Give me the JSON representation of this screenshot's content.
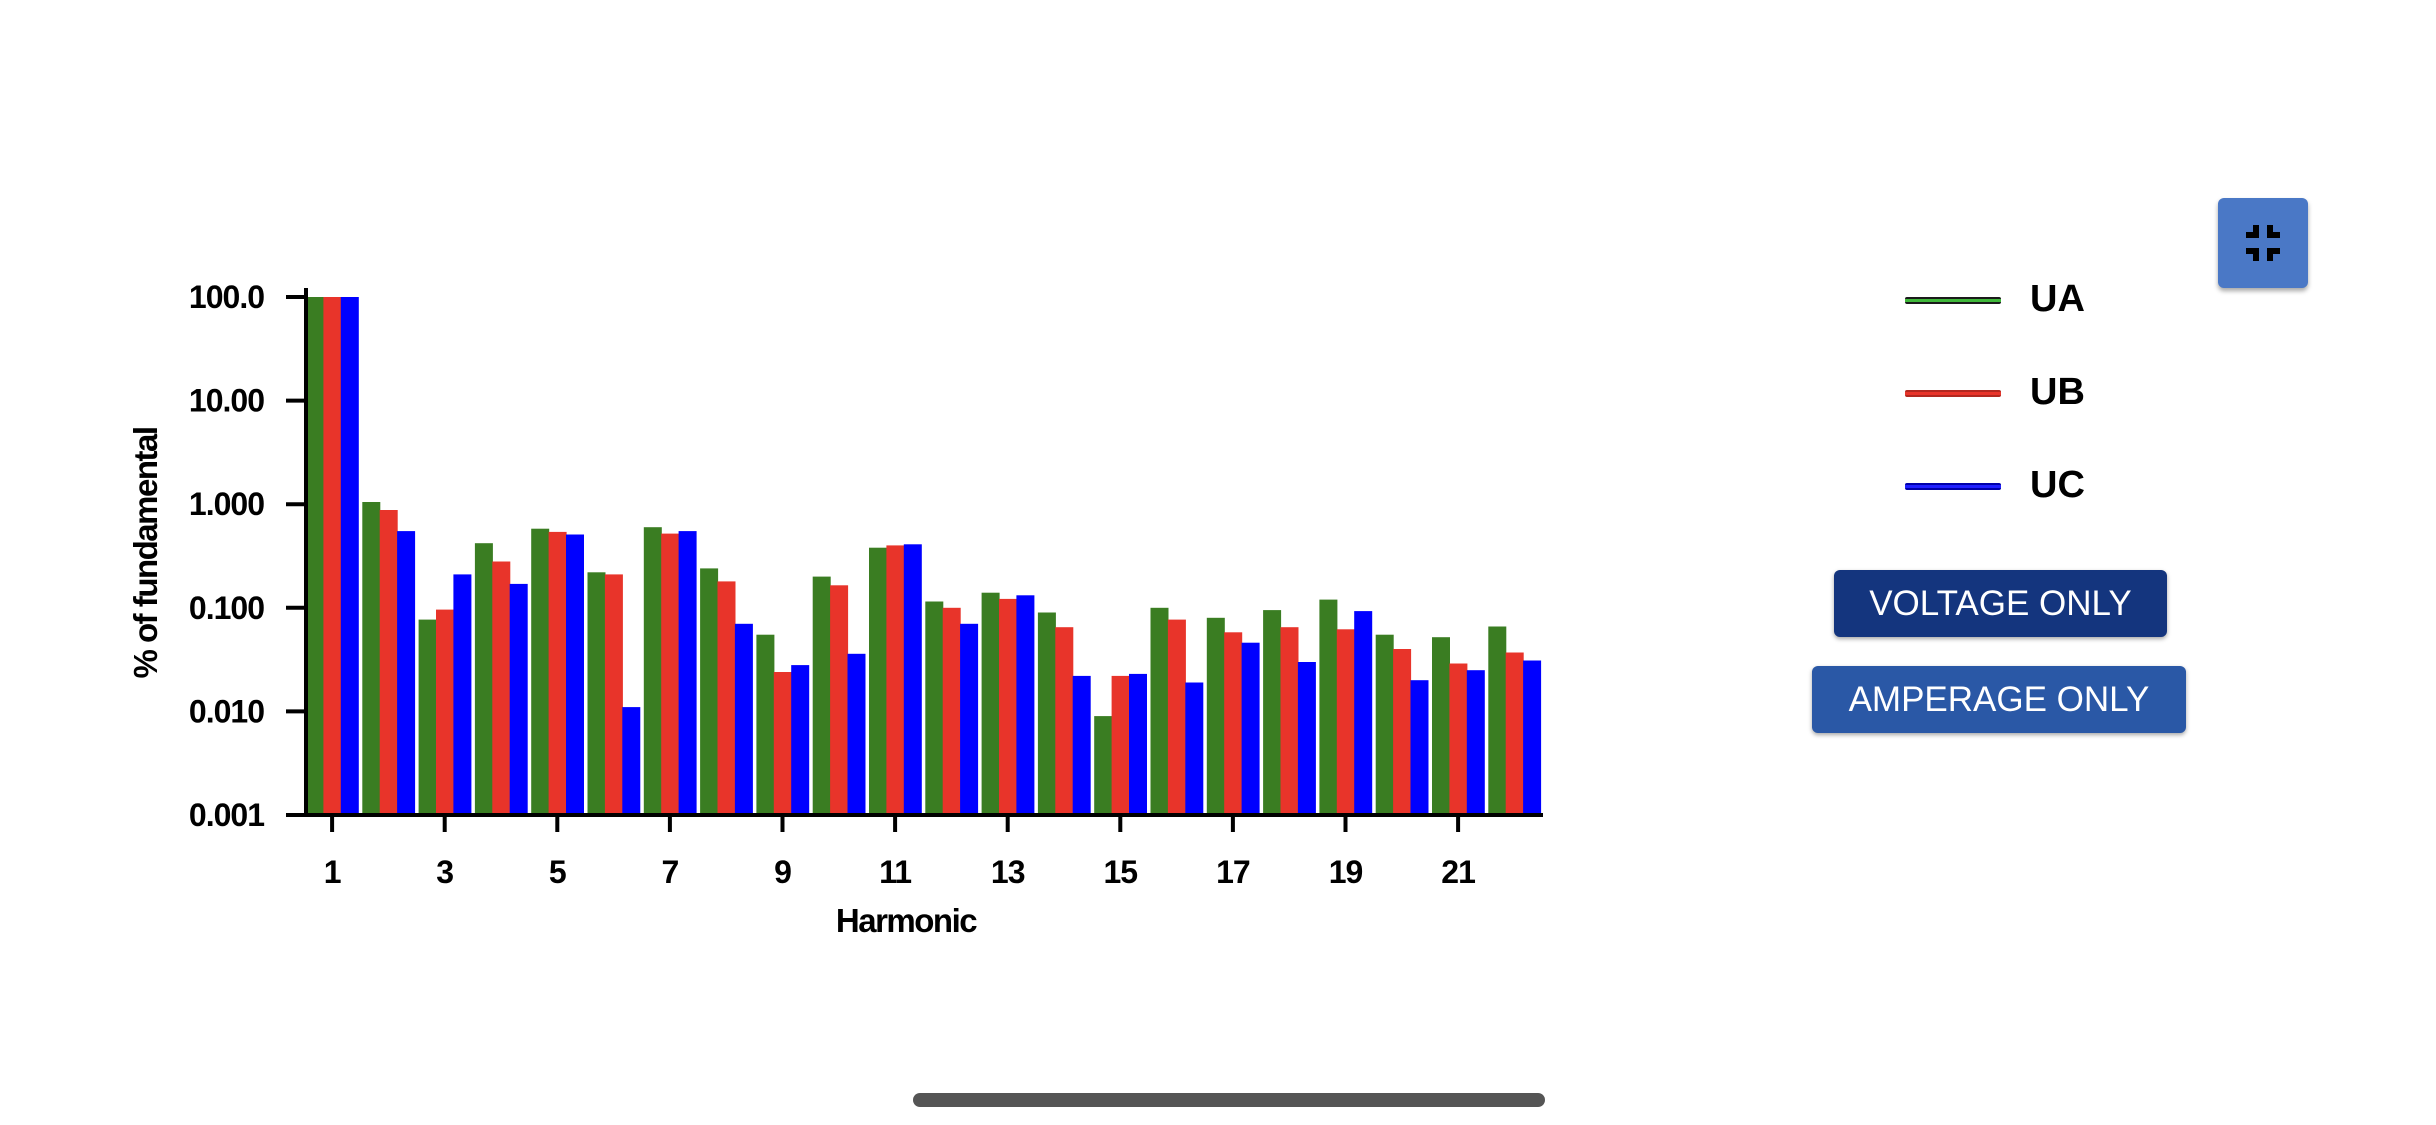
{
  "colors": {
    "ua": "#3a7d22",
    "ub": "#e8342a",
    "uc": "#0000ff",
    "button_dark": "#14357e",
    "button_light": "#2a58a6",
    "collapse_button": "#4a78c6"
  },
  "legend": [
    {
      "label": "UA",
      "color": "#3a7d22",
      "line": "#3fb83a"
    },
    {
      "label": "UB",
      "color": "#e8342a",
      "line": "#e8342a"
    },
    {
      "label": "UC",
      "color": "#0000ff",
      "line": "#0000ff"
    }
  ],
  "buttons": {
    "voltage_only": "VOLTAGE ONLY",
    "amperage_only": "AMPERAGE ONLY"
  },
  "collapse_icon": "collapse-icon",
  "chart_data": {
    "type": "bar",
    "xlabel": "Harmonic",
    "ylabel": "% of fundamental",
    "yscale": "log",
    "ylim": [
      0.001,
      100
    ],
    "y_ticks": [
      "100.0",
      "10.00",
      "1.000",
      "0.100",
      "0.010",
      "0.001"
    ],
    "x_tick_labels": [
      "1",
      "3",
      "5",
      "7",
      "9",
      "11",
      "13",
      "15",
      "17",
      "19",
      "21"
    ],
    "categories": [
      1,
      2,
      3,
      4,
      5,
      6,
      7,
      8,
      9,
      10,
      11,
      12,
      13,
      14,
      15,
      16,
      17,
      18,
      19,
      20,
      21,
      22
    ],
    "series": [
      {
        "name": "UA",
        "values": [
          100,
          1.05,
          0.077,
          0.42,
          0.58,
          0.22,
          0.6,
          0.24,
          0.055,
          0.2,
          0.38,
          0.115,
          0.14,
          0.09,
          0.009,
          0.1,
          0.08,
          0.095,
          0.12,
          0.055,
          0.052,
          0.066
        ]
      },
      {
        "name": "UB",
        "values": [
          100,
          0.88,
          0.096,
          0.28,
          0.54,
          0.21,
          0.52,
          0.18,
          0.024,
          0.165,
          0.4,
          0.1,
          0.122,
          0.065,
          0.022,
          0.077,
          0.058,
          0.065,
          0.062,
          0.04,
          0.029,
          0.037
        ]
      },
      {
        "name": "UC",
        "values": [
          100,
          0.55,
          0.21,
          0.17,
          0.51,
          0.011,
          0.55,
          0.07,
          0.028,
          0.036,
          0.41,
          0.07,
          0.132,
          0.022,
          0.023,
          0.019,
          0.046,
          0.03,
          0.093,
          0.02,
          0.025,
          0.031
        ]
      }
    ],
    "grid": false,
    "legend_position": "right"
  }
}
